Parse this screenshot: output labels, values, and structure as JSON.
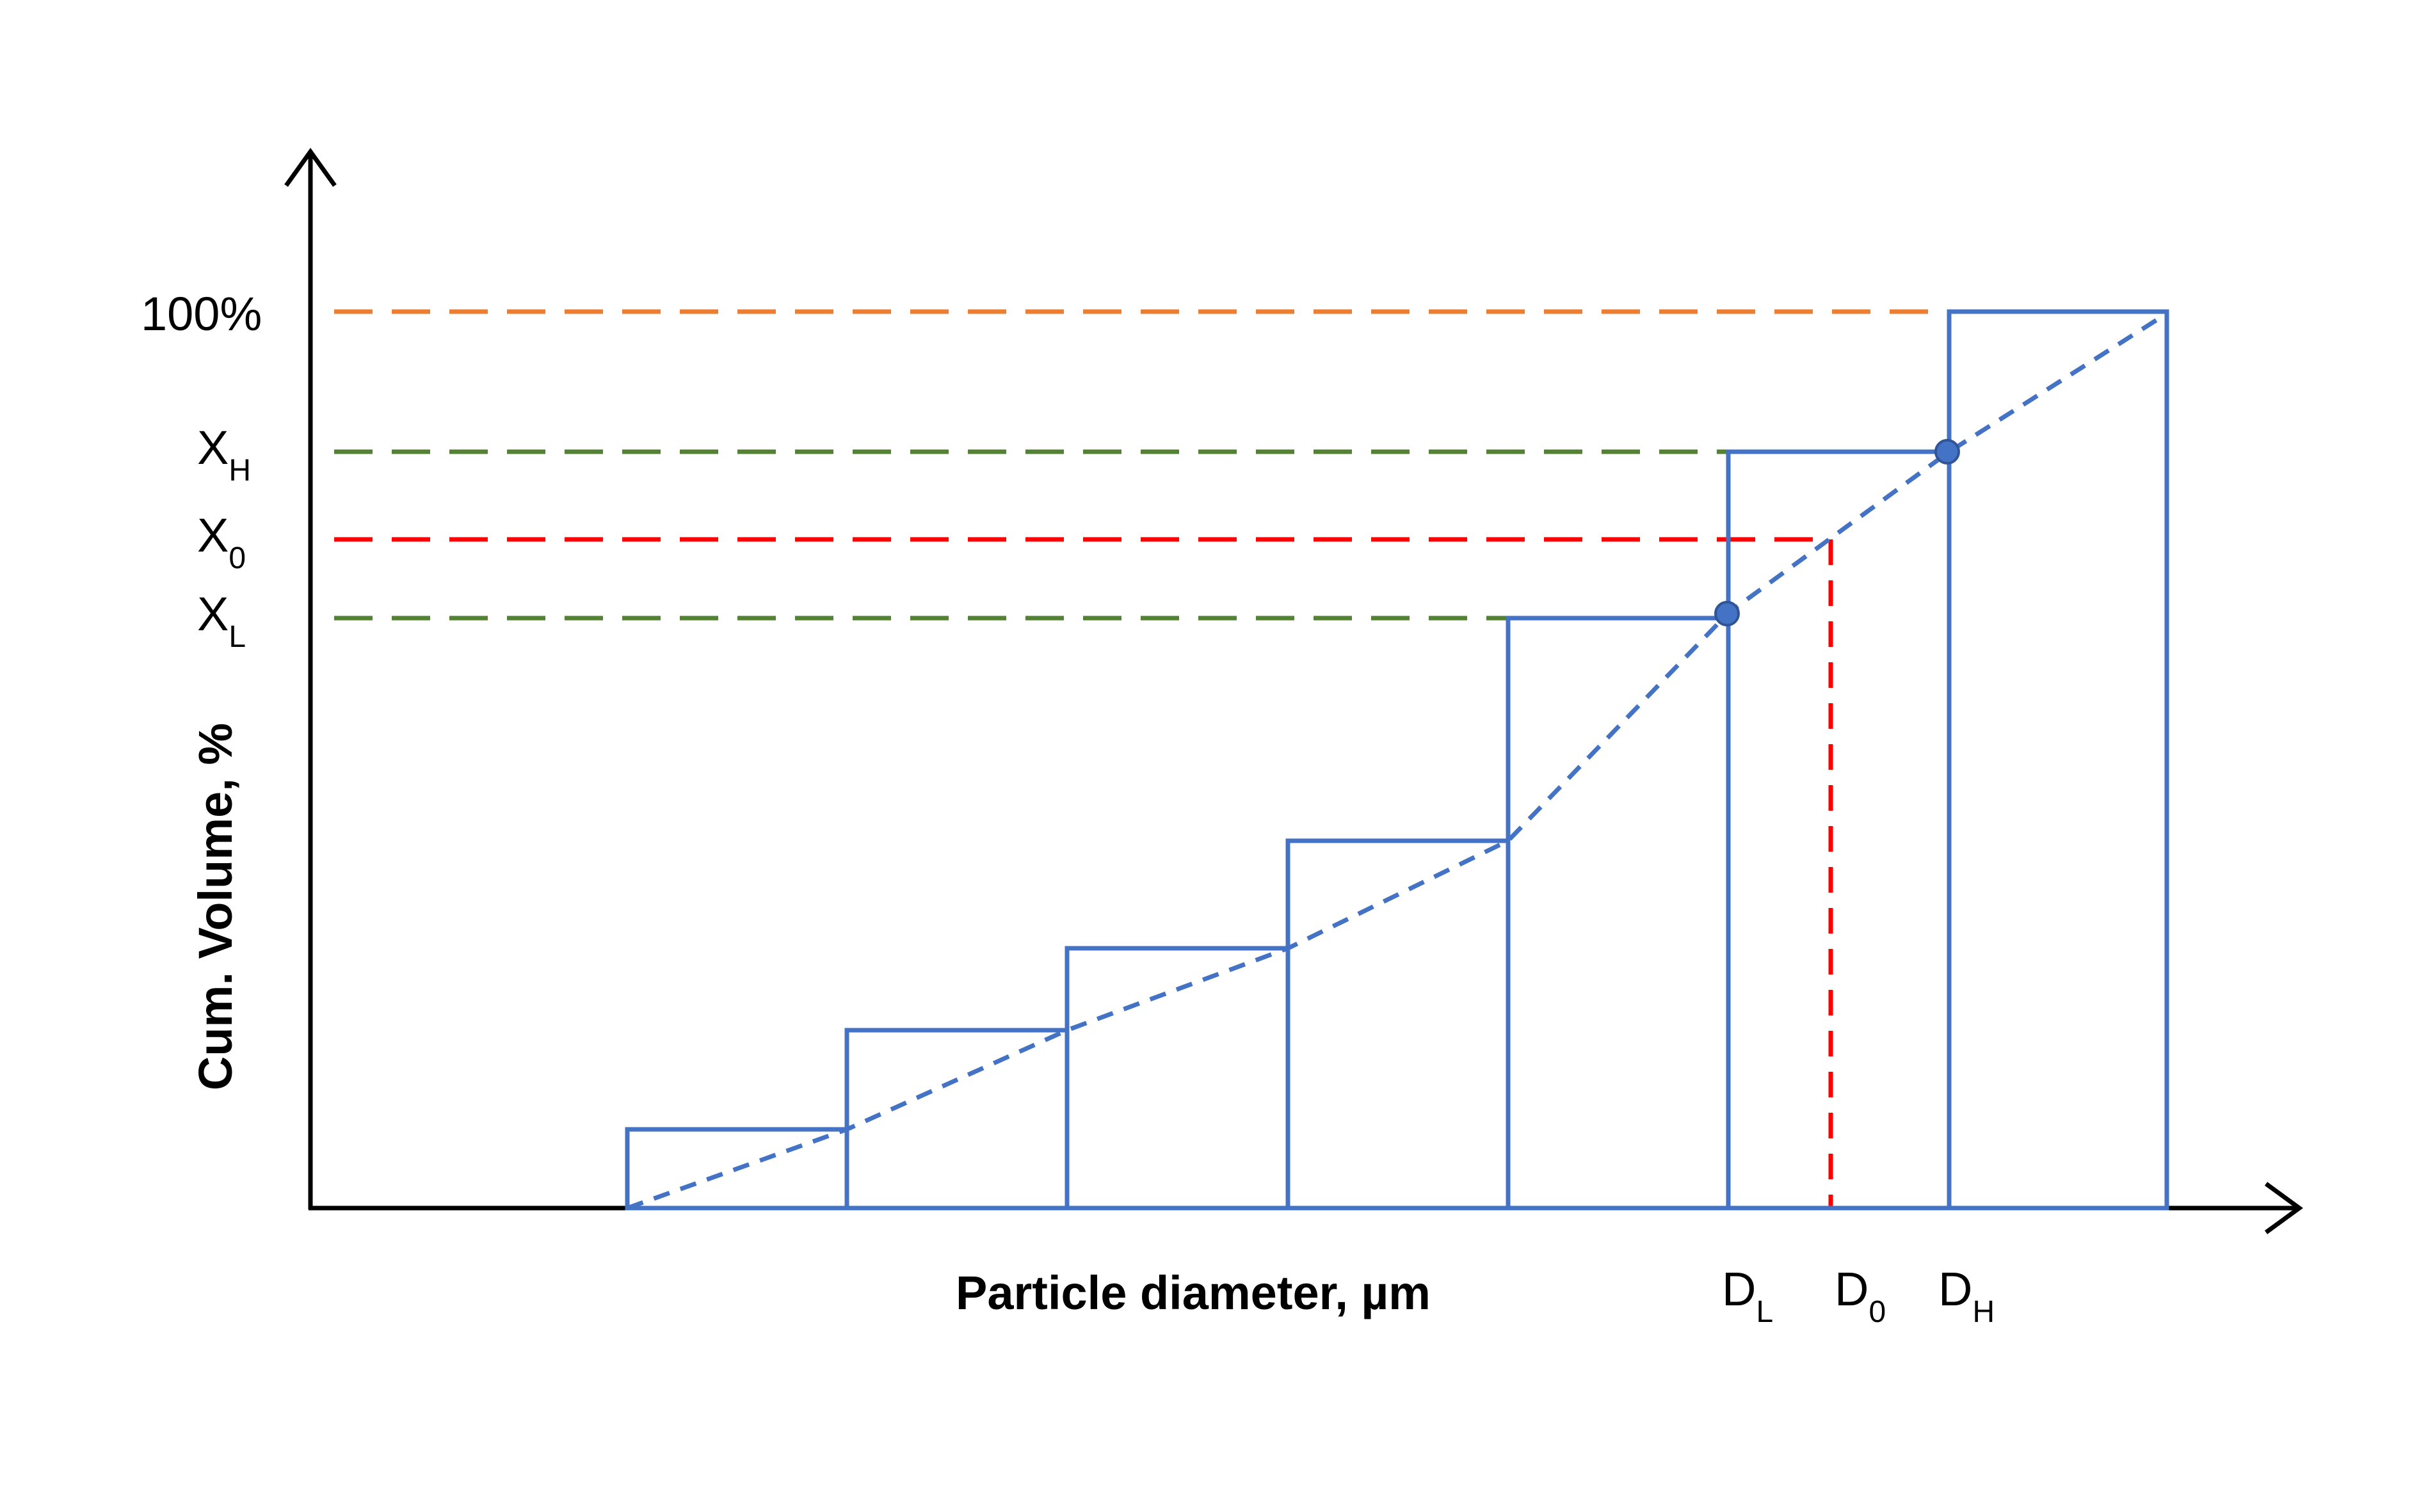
{
  "labels": {
    "y_axis_title": "Cum. Volume, %",
    "x_axis_title": "Particle diameter, µm",
    "y_100": "100%",
    "x_h_main": "X",
    "x_h_sub": "H",
    "x_0_main": "X",
    "x_0_sub": "0",
    "x_l_main": "X",
    "x_l_sub": "L",
    "d_l_main": "D",
    "d_l_sub": "L",
    "d_0_main": "D",
    "d_0_sub": "0",
    "d_h_main": "D",
    "d_h_sub": "H"
  },
  "colors": {
    "axis": "#000000",
    "steps": "#4472C4",
    "curve": "#4472C4",
    "points": "#4472C4",
    "line_100": "#ED7D31",
    "line_xh_xl": "#548235",
    "line_x0_d0": "#FF0000"
  }
}
